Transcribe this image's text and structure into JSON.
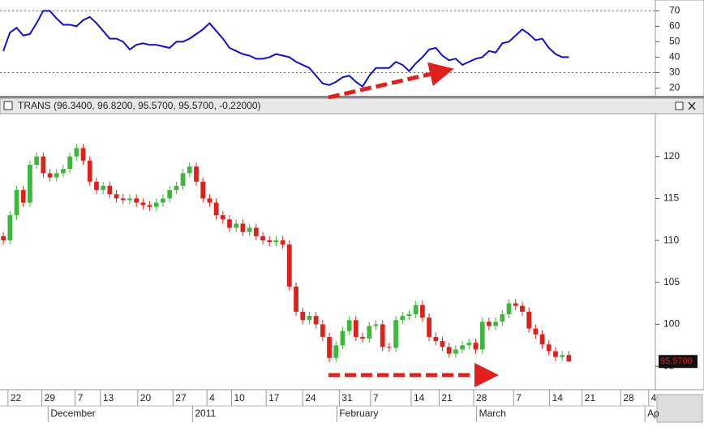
{
  "chart_data": [
    {
      "type": "line",
      "color": "#1010cc",
      "ylim": [
        15,
        77
      ],
      "yticks": [
        20,
        30,
        40,
        50,
        60,
        70
      ],
      "ref_lines": [
        70,
        30
      ],
      "values": [
        44,
        56,
        59,
        54,
        55,
        62,
        70,
        70,
        65,
        61,
        61,
        60,
        64,
        66,
        62,
        57,
        52,
        52,
        50,
        45,
        48,
        49,
        48,
        48,
        47,
        46,
        50,
        50,
        52,
        55,
        58,
        62,
        57,
        52,
        46,
        44,
        42,
        41,
        39,
        39,
        40,
        42,
        41,
        40,
        37,
        35,
        33,
        28,
        23,
        22,
        24,
        27,
        28,
        24,
        21,
        28,
        33,
        33,
        33,
        37,
        35,
        31,
        36,
        40,
        45,
        46,
        41,
        38,
        39,
        35,
        37,
        39,
        40,
        44,
        43,
        49,
        50,
        54,
        58,
        55,
        51,
        52,
        46,
        42,
        40,
        40
      ]
    },
    {
      "type": "candlestick",
      "title": "TRANS (96.3400, 96.8200, 95.5700, 95.5700, -0.22000)",
      "up_color": "#3cb93c",
      "down_color": "#e0201a",
      "xlim": [
        -0.5,
        98
      ],
      "ylim": [
        92.4,
        125.1
      ],
      "yticks": [
        95,
        100,
        105,
        110,
        115,
        120
      ],
      "last_price": {
        "value": 95.57,
        "label": "95.5700"
      },
      "xticks": [
        {
          "value": 0.7,
          "label": "22"
        },
        {
          "value": 5.8,
          "label": "29"
        },
        {
          "value": 10.8,
          "label": "7"
        },
        {
          "value": 14.6,
          "label": "13"
        },
        {
          "value": 20.2,
          "label": "20"
        },
        {
          "value": 25.5,
          "label": "27"
        },
        {
          "value": 30.6,
          "label": "4"
        },
        {
          "value": 34.3,
          "label": "10"
        },
        {
          "value": 39.5,
          "label": "17"
        },
        {
          "value": 45,
          "label": "24"
        },
        {
          "value": 50.5,
          "label": "31"
        },
        {
          "value": 55.2,
          "label": "7"
        },
        {
          "value": 61.3,
          "label": "14"
        },
        {
          "value": 65.5,
          "label": "21"
        },
        {
          "value": 70.7,
          "label": "28"
        },
        {
          "value": 76.7,
          "label": "7"
        },
        {
          "value": 82.1,
          "label": "14"
        },
        {
          "value": 87,
          "label": "21"
        },
        {
          "value": 92.8,
          "label": "28"
        },
        {
          "value": 97,
          "label": "4"
        }
      ],
      "months": [
        {
          "value": 7.1,
          "label": "December"
        },
        {
          "value": 28.8,
          "label": "2011"
        },
        {
          "value": 50.5,
          "label": "February"
        },
        {
          "value": 71.5,
          "label": "March"
        },
        {
          "value": 96.8,
          "label": "Ap"
        }
      ],
      "ohlc": [
        [
          110.5,
          111,
          109.5,
          110
        ],
        [
          110,
          113.5,
          109.5,
          113
        ],
        [
          113,
          116.5,
          112.5,
          116
        ],
        [
          116,
          116.5,
          114,
          114.5
        ],
        [
          114.5,
          119.5,
          114,
          119
        ],
        [
          119,
          120.5,
          118.5,
          120
        ],
        [
          120,
          120.5,
          117.5,
          118
        ],
        [
          118,
          118.5,
          117,
          117.5
        ],
        [
          117.5,
          118.5,
          117,
          118
        ],
        [
          118,
          119,
          117.5,
          118.5
        ],
        [
          118.5,
          120.5,
          118,
          120
        ],
        [
          120,
          121.5,
          119.5,
          121
        ],
        [
          121,
          121.5,
          119,
          119.5
        ],
        [
          119.5,
          120,
          116.5,
          117
        ],
        [
          117,
          117.5,
          115.5,
          116
        ],
        [
          116,
          117,
          115.5,
          116.5
        ],
        [
          116.5,
          117,
          115,
          115.5
        ],
        [
          115.5,
          116,
          114.5,
          115
        ],
        [
          115,
          115.5,
          114.3,
          114.8
        ],
        [
          114.8,
          115.5,
          114.3,
          115
        ],
        [
          115,
          115.5,
          114,
          114.5
        ],
        [
          114.5,
          115,
          113.7,
          114.2
        ],
        [
          114.2,
          114.7,
          113.5,
          114
        ],
        [
          114,
          115,
          113.5,
          114.5
        ],
        [
          114.5,
          115.5,
          114,
          115
        ],
        [
          115,
          116.5,
          114.5,
          116
        ],
        [
          116,
          117,
          115.5,
          116.5
        ],
        [
          116.5,
          118.5,
          116,
          118
        ],
        [
          118,
          119.3,
          117.5,
          118.8
        ],
        [
          118.8,
          119.3,
          116.5,
          117
        ],
        [
          117,
          117.5,
          114.5,
          115
        ],
        [
          115,
          115.5,
          114,
          114.5
        ],
        [
          114.5,
          115,
          112.5,
          113
        ],
        [
          113,
          113.5,
          112,
          112.5
        ],
        [
          112.5,
          113,
          111,
          111.5
        ],
        [
          111.5,
          112.5,
          111,
          112
        ],
        [
          112,
          112.5,
          110.5,
          111
        ],
        [
          111,
          112,
          110.5,
          111.5
        ],
        [
          111.5,
          112,
          110,
          110.5
        ],
        [
          110.5,
          111,
          109.5,
          110
        ],
        [
          110,
          110.5,
          109.3,
          109.8
        ],
        [
          109.8,
          110.5,
          109.3,
          110
        ],
        [
          110,
          110.5,
          109,
          109.5
        ],
        [
          109.5,
          110,
          104,
          104.5
        ],
        [
          104.5,
          105,
          101,
          101.5
        ],
        [
          101.5,
          102,
          100,
          100.5
        ],
        [
          100.5,
          101.5,
          100,
          101
        ],
        [
          101,
          101.5,
          99.5,
          100
        ],
        [
          100,
          100.5,
          98,
          98.5
        ],
        [
          98.5,
          99,
          95.5,
          96
        ],
        [
          96,
          98,
          95.5,
          97.5
        ],
        [
          97.5,
          99.7,
          97,
          99.2
        ],
        [
          99.2,
          101,
          98.7,
          100.5
        ],
        [
          100.5,
          101,
          98,
          98.5
        ],
        [
          98.5,
          99,
          97.8,
          98.3
        ],
        [
          98.3,
          100.3,
          97.8,
          99.8
        ],
        [
          99.8,
          100.5,
          99.3,
          100
        ],
        [
          100,
          100.5,
          96.8,
          97.3
        ],
        [
          97.3,
          97.8,
          96.7,
          97.2
        ],
        [
          97.2,
          101,
          96.7,
          100.5
        ],
        [
          100.5,
          101.5,
          100,
          101
        ],
        [
          101,
          101.7,
          100.5,
          101.2
        ],
        [
          101.2,
          102.8,
          100.7,
          102.3
        ],
        [
          102.3,
          102.8,
          100.3,
          100.8
        ],
        [
          100.8,
          101.3,
          98,
          98.5
        ],
        [
          98.5,
          99,
          97.5,
          98
        ],
        [
          98,
          98.5,
          96.8,
          97.3
        ],
        [
          97.3,
          97.8,
          96,
          96.5
        ],
        [
          96.5,
          97.5,
          96,
          97
        ],
        [
          97,
          98,
          96.5,
          97.5
        ],
        [
          97.5,
          98.3,
          97,
          97.8
        ],
        [
          97.8,
          98.3,
          96.5,
          97
        ],
        [
          97,
          100.8,
          96.5,
          100.3
        ],
        [
          100.3,
          100.8,
          99.3,
          99.8
        ],
        [
          99.8,
          100.8,
          99.3,
          100.3
        ],
        [
          100.3,
          101.7,
          99.8,
          101.2
        ],
        [
          101.2,
          103,
          100.7,
          102.5
        ],
        [
          102.5,
          103,
          101.7,
          102.2
        ],
        [
          102.2,
          102.7,
          101,
          101.5
        ],
        [
          101.5,
          102,
          99,
          99.5
        ],
        [
          99.5,
          100,
          98.3,
          98.8
        ],
        [
          98.8,
          99.3,
          97.1,
          97.6
        ],
        [
          97.6,
          98.1,
          96.3,
          96.8
        ],
        [
          96.8,
          97.3,
          95.6,
          96.1
        ],
        [
          96.1,
          96.84,
          95.6,
          96.34
        ],
        [
          96.34,
          96.82,
          95.57,
          95.57
        ]
      ]
    }
  ]
}
